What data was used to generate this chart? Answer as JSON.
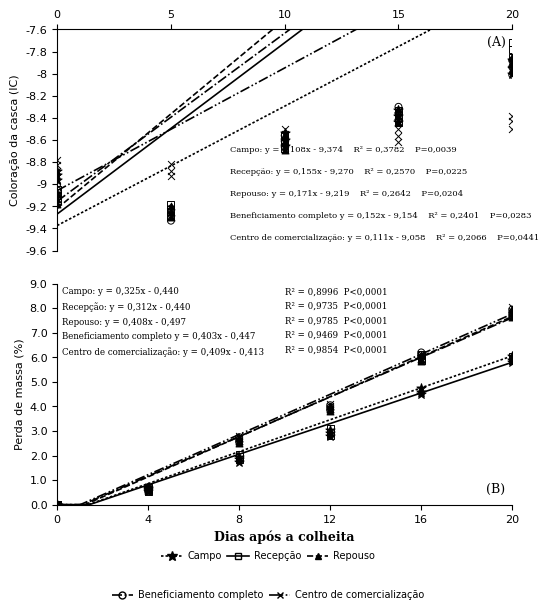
{
  "panel_A": {
    "ylabel": "Coloração da casca (IC)",
    "ylim": [
      -9.6,
      -7.6
    ],
    "yticks": [
      -9.6,
      -9.4,
      -9.2,
      -9.0,
      -8.8,
      -8.6,
      -8.4,
      -8.2,
      -8.0,
      -7.8,
      -7.6
    ],
    "xticks": [
      0,
      5,
      10,
      15,
      20
    ],
    "equations": {
      "Campo": {
        "slope": 0.108,
        "intercept": -9.374
      },
      "Recepção": {
        "slope": 0.155,
        "intercept": -9.27
      },
      "Repouso": {
        "slope": 0.171,
        "intercept": -9.219
      },
      "Beneficiamento completo": {
        "slope": 0.152,
        "intercept": -9.154
      },
      "Centro de comercialização": {
        "slope": 0.111,
        "intercept": -9.058
      }
    },
    "annotation": "Campo: y = 0,108x - 9,374    R² = 0,3782    P=0,0039\n\nRecepção: y = 0,155x - 9,270    R² = 0,2570    P=0,0225\n\nRepouso: y = 0,171x - 9,219    R² = 0,2642    P=0,0204\n\nBeneficiamento completo y = 0,152x - 9,154    R² = 0,2401    P=0,0283\n\nCentro de comercialização: y = 0,111x - 9,058    R² = 0,2066    P=0,0441",
    "scatter": {
      "Campo": {
        "x": [
          0,
          0,
          0,
          10,
          10,
          10,
          15,
          15,
          15,
          20,
          20,
          20
        ],
        "y": [
          -8.88,
          -8.92,
          -8.96,
          -8.54,
          -8.6,
          -8.65,
          -8.33,
          -8.38,
          -8.44,
          -7.88,
          -7.95,
          -8.0
        ]
      },
      "Recepção": {
        "x": [
          0,
          0,
          0,
          5,
          5,
          5,
          10,
          10,
          10,
          15,
          15,
          15,
          20,
          20,
          20
        ],
        "y": [
          -9.05,
          -9.1,
          -9.15,
          -9.18,
          -9.23,
          -9.28,
          -8.56,
          -8.62,
          -8.68,
          -8.33,
          -8.38,
          -8.44,
          -7.72,
          -7.78,
          -7.85
        ]
      },
      "Repouso": {
        "x": [
          0,
          0,
          0,
          5,
          5,
          5,
          10,
          10,
          10,
          15,
          15,
          15,
          20,
          20,
          20
        ],
        "y": [
          -9.08,
          -9.13,
          -9.18,
          -9.2,
          -9.25,
          -9.3,
          -8.57,
          -8.63,
          -8.69,
          -8.32,
          -8.38,
          -8.44,
          -7.85,
          -7.9,
          -7.97
        ]
      },
      "Beneficiamento completo": {
        "x": [
          0,
          0,
          0,
          5,
          5,
          5,
          10,
          10,
          10,
          15,
          15,
          15,
          20,
          20,
          20
        ],
        "y": [
          -9.0,
          -9.05,
          -9.1,
          -9.22,
          -9.27,
          -9.33,
          -8.56,
          -8.61,
          -8.66,
          -8.3,
          -8.36,
          -8.42,
          -7.88,
          -7.94,
          -8.01
        ]
      },
      "Centro de comercialização": {
        "x": [
          0,
          0,
          0,
          5,
          5,
          5,
          10,
          10,
          10,
          15,
          15,
          15,
          20,
          20,
          20
        ],
        "y": [
          -8.78,
          -8.83,
          -8.88,
          -8.82,
          -8.88,
          -8.93,
          -8.5,
          -8.55,
          -8.61,
          -8.5,
          -8.56,
          -8.62,
          -8.38,
          -8.43,
          -8.5
        ]
      }
    }
  },
  "panel_B": {
    "ylabel": "Perda de massa (%)",
    "xlabel": "Dias após a colheita",
    "ylim": [
      0.0,
      9.0
    ],
    "yticks": [
      0.0,
      1.0,
      2.0,
      3.0,
      4.0,
      5.0,
      6.0,
      7.0,
      8.0,
      9.0
    ],
    "xticks": [
      0,
      4,
      8,
      12,
      16,
      20
    ],
    "equations": {
      "Campo": {
        "slope": 0.325,
        "intercept": -0.44
      },
      "Recepção": {
        "slope": 0.312,
        "intercept": -0.44
      },
      "Repouso": {
        "slope": 0.408,
        "intercept": -0.497
      },
      "Beneficiamento completo": {
        "slope": 0.403,
        "intercept": -0.447
      },
      "Centro de comercialização": {
        "slope": 0.409,
        "intercept": -0.413
      }
    },
    "annotation_left": "Campo: y = 0,325x - 0,440\nRecepção: y = 0,312x - 0,440\nRepouso: y = 0,408x - 0,497\nBeneficiamento completo y = 0,403x - 0,447\nCentro de comercialização: y = 0,409x - 0,413",
    "annotation_right": "R² = 0,8996  P<0,0001\nR² = 0,9735  P<0,0001\nR² = 0,9785  P<0,0001\nR² = 0,9469  P<0,0001\nR² = 0,9854  P<0,0001",
    "scatter": {
      "Campo": {
        "x": [
          0,
          0,
          0,
          4,
          4,
          4,
          8,
          8,
          8,
          12,
          12,
          12,
          16,
          16,
          16,
          20,
          20,
          20
        ],
        "y": [
          0.0,
          0.0,
          0.0,
          0.55,
          0.62,
          0.7,
          1.75,
          1.85,
          1.95,
          2.8,
          2.9,
          3.05,
          4.5,
          4.6,
          4.75,
          5.8,
          5.9,
          6.05
        ]
      },
      "Recepção": {
        "x": [
          0,
          0,
          0,
          4,
          4,
          4,
          8,
          8,
          8,
          12,
          12,
          12,
          16,
          16,
          16,
          20,
          20,
          20
        ],
        "y": [
          0.0,
          0.0,
          0.0,
          0.55,
          0.62,
          0.7,
          1.85,
          1.95,
          2.05,
          2.8,
          2.95,
          3.1,
          5.85,
          5.95,
          6.1,
          5.85,
          5.95,
          6.05
        ]
      },
      "Repouso": {
        "x": [
          0,
          0,
          0,
          4,
          4,
          4,
          8,
          8,
          8,
          12,
          12,
          12,
          16,
          16,
          16,
          20,
          20,
          20
        ],
        "y": [
          0.0,
          0.0,
          0.0,
          0.6,
          0.68,
          0.77,
          2.5,
          2.6,
          2.7,
          3.8,
          3.9,
          4.0,
          5.85,
          5.95,
          6.1,
          7.65,
          7.8,
          7.95
        ]
      },
      "Beneficiamento completo": {
        "x": [
          0,
          0,
          0,
          4,
          4,
          4,
          8,
          8,
          8,
          12,
          12,
          12,
          16,
          16,
          16,
          20,
          20,
          20
        ],
        "y": [
          0.0,
          0.0,
          0.0,
          0.55,
          0.63,
          0.72,
          2.55,
          2.65,
          2.75,
          3.85,
          3.95,
          4.05,
          6.0,
          6.1,
          6.2,
          7.7,
          7.82,
          7.95
        ]
      },
      "Centro de comercialização": {
        "x": [
          0,
          0,
          0,
          4,
          4,
          4,
          8,
          8,
          8,
          12,
          12,
          12,
          16,
          16,
          16,
          20,
          20,
          20
        ],
        "y": [
          0.0,
          0.0,
          0.0,
          0.55,
          0.63,
          0.72,
          2.6,
          2.7,
          2.8,
          3.9,
          4.0,
          4.1,
          5.95,
          6.05,
          6.15,
          7.75,
          7.88,
          8.05
        ]
      }
    }
  },
  "series": [
    "Campo",
    "Recepção",
    "Repouso",
    "Beneficiamento completo",
    "Centro de comercialização"
  ],
  "fig_width": 5.55,
  "fig_height": 6.51
}
